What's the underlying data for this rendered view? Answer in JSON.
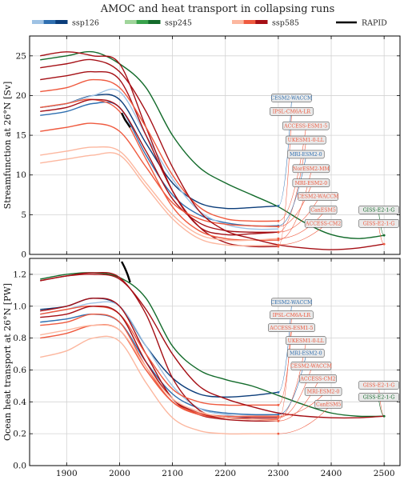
{
  "figure_title": "AMOC and heat transport in collapsing runs",
  "colors": {
    "ssp126": [
      "#9ec2e4",
      "#2f6fb0",
      "#0b3d7a"
    ],
    "ssp245": [
      "#9fd59a",
      "#38a24b",
      "#136b2b"
    ],
    "ssp585": [
      "#fcb79f",
      "#ef5a3f",
      "#a50f15"
    ],
    "rapid": "#000000"
  },
  "legend": [
    {
      "label": "ssp126",
      "scenario": "ssp126"
    },
    {
      "label": "ssp245",
      "scenario": "ssp245"
    },
    {
      "label": "ssp585",
      "scenario": "ssp585"
    },
    {
      "label": "RAPID",
      "scenario": "rapid"
    }
  ],
  "chart_data": [
    {
      "type": "line",
      "panel": "top",
      "title": "AMOC and heat transport in collapsing runs",
      "xlabel": "",
      "ylabel": "Streamfunction at 26°N [Sv]",
      "xlim": [
        1830,
        2530
      ],
      "ylim": [
        0,
        27.5
      ],
      "xticks": [
        1900,
        2000,
        2100,
        2200,
        2300,
        2400,
        2500
      ],
      "yticks": [
        0,
        5,
        10,
        15,
        20,
        25
      ],
      "grid": true,
      "series": [
        {
          "model": "CESM2-WACCM",
          "scenario": "ssp126",
          "shade": 2,
          "x": [
            1850,
            1900,
            1950,
            2000,
            2050,
            2100,
            2150,
            2200,
            2250,
            2300
          ],
          "y": [
            18.5,
            19,
            20,
            19.5,
            14,
            9,
            6.5,
            5.8,
            5.9,
            6.1
          ]
        },
        {
          "model": "MRI-ESM2-0",
          "scenario": "ssp126",
          "shade": 1,
          "x": [
            1850,
            1900,
            1950,
            2000,
            2050,
            2100,
            2150,
            2200,
            2250,
            2300
          ],
          "y": [
            17.5,
            18,
            19,
            18.5,
            12.5,
            7.5,
            5,
            4,
            3.6,
            3.6
          ]
        },
        {
          "model": "UKESM1-0-LL",
          "scenario": "ssp126",
          "shade": 0,
          "x": [
            1850,
            1900,
            1950,
            2000,
            2050,
            2100,
            2150,
            2200,
            2250,
            2300
          ],
          "y": [
            18.5,
            19,
            20,
            20.5,
            15,
            9.5,
            5.5,
            3.8,
            3.2,
            3.2
          ]
        },
        {
          "model": "GISS-E2-1-G",
          "scenario": "ssp245",
          "shade": 2,
          "x": [
            1850,
            1900,
            1950,
            2000,
            2050,
            2100,
            2150,
            2200,
            2250,
            2300,
            2350,
            2400,
            2450,
            2500
          ],
          "y": [
            24.5,
            25,
            25.5,
            24,
            21,
            15,
            11,
            9,
            7.5,
            6,
            4,
            2.5,
            2,
            2.4
          ]
        },
        {
          "model": "UKESM1-0-LL",
          "scenario": "ssp585",
          "shade": 2,
          "x": [
            1850,
            1900,
            1950,
            2000,
            2050,
            2100,
            2150,
            2200,
            2250,
            2300
          ],
          "y": [
            25,
            25.5,
            25,
            24,
            16,
            8,
            3.5,
            2.5,
            2.6,
            2.8
          ]
        },
        {
          "model": "IPSL-CM6A-LR",
          "scenario": "ssp585",
          "shade": 2,
          "x": [
            1850,
            1900,
            1950,
            2000,
            2050,
            2100,
            2150,
            2200,
            2250,
            2300
          ],
          "y": [
            22,
            22.5,
            23,
            22,
            15,
            8,
            3.5,
            1.5,
            1,
            1
          ]
        },
        {
          "model": "ACCESS-ESM1-5",
          "scenario": "ssp585",
          "shade": 1,
          "x": [
            1850,
            1900,
            1950,
            2000,
            2050,
            2100,
            2150,
            2200,
            2250,
            2300
          ],
          "y": [
            20.5,
            21,
            22,
            21,
            16,
            10,
            6,
            4.5,
            4.2,
            4.2
          ]
        },
        {
          "model": "NorESM2-MM",
          "scenario": "ssp585",
          "shade": 1,
          "x": [
            1850,
            1900,
            1950,
            2000,
            2050,
            2100,
            2150,
            2200,
            2250,
            2300
          ],
          "y": [
            18.5,
            19,
            19.5,
            18,
            12,
            6,
            3,
            2,
            1.8,
            1.8
          ]
        },
        {
          "model": "CESM2-WACCM",
          "scenario": "ssp585",
          "shade": 2,
          "x": [
            1850,
            1900,
            1950,
            2000,
            2050,
            2100,
            2150,
            2200,
            2250,
            2300
          ],
          "y": [
            18,
            18.5,
            19.5,
            18.5,
            13,
            7,
            4,
            3,
            2.8,
            2.8
          ]
        },
        {
          "model": "MRI-ESM2-0",
          "scenario": "ssp585",
          "shade": 1,
          "x": [
            1850,
            1900,
            1950,
            2000,
            2050,
            2100,
            2150,
            2200,
            2250,
            2300
          ],
          "y": [
            15.5,
            16,
            16.5,
            15.5,
            11,
            6.5,
            4.5,
            3.8,
            3.6,
            3.5
          ]
        },
        {
          "model": "CanESM5",
          "scenario": "ssp585",
          "shade": 0,
          "x": [
            1850,
            1900,
            1950,
            2000,
            2050,
            2100,
            2150,
            2200,
            2250,
            2300
          ],
          "y": [
            12.5,
            13,
            13.5,
            13,
            9,
            5,
            2.5,
            1.8,
            1.8,
            2
          ]
        },
        {
          "model": "ACCESS-CM2",
          "scenario": "ssp585",
          "shade": 0,
          "x": [
            1850,
            1900,
            1950,
            2000,
            2050,
            2100,
            2150,
            2200,
            2250,
            2300
          ],
          "y": [
            11.5,
            12,
            12.5,
            12.5,
            8.5,
            4.5,
            2,
            1.2,
            1.1,
            1.2
          ]
        },
        {
          "model": "GISS-E2-1-G",
          "scenario": "ssp585",
          "shade": 2,
          "x": [
            1850,
            1900,
            1950,
            2000,
            2050,
            2100,
            2150,
            2200,
            2250,
            2300,
            2350,
            2400,
            2450,
            2500
          ],
          "y": [
            23.5,
            24,
            24.5,
            23,
            18,
            11,
            5.5,
            3,
            2,
            1.2,
            0.8,
            0.6,
            0.8,
            1.3
          ]
        }
      ],
      "rapid": {
        "x": [
          2004,
          2010,
          2015,
          2020
        ],
        "y": [
          17.8,
          17,
          16.5,
          16
        ]
      },
      "labels": [
        {
          "text": "CESM2-WACCM",
          "scenario": "ssp126",
          "x": 2325,
          "y": 19.7
        },
        {
          "text": "IPSL-CM6A-LR",
          "scenario": "ssp585",
          "x": 2325,
          "y": 18.0
        },
        {
          "text": "ACCESS-ESM1-5",
          "scenario": "ssp585",
          "x": 2352,
          "y": 16.2
        },
        {
          "text": "UKESM1-0-LL",
          "scenario": "ssp585",
          "x": 2352,
          "y": 14.4
        },
        {
          "text": "MRI-ESM2-0",
          "scenario": "ssp126",
          "x": 2352,
          "y": 12.6
        },
        {
          "text": "NorESM2-MM",
          "scenario": "ssp585",
          "x": 2362,
          "y": 10.8
        },
        {
          "text": "MRI-ESM2-0",
          "scenario": "ssp585",
          "x": 2362,
          "y": 9.0
        },
        {
          "text": "CESM2-WACCM",
          "scenario": "ssp585",
          "x": 2375,
          "y": 7.3
        },
        {
          "text": "CanESM5",
          "scenario": "ssp585",
          "x": 2385,
          "y": 5.6
        },
        {
          "text": "ACCESS-CM2",
          "scenario": "ssp585",
          "x": 2385,
          "y": 3.9
        },
        {
          "text": "GISS-E2-1-G",
          "scenario": "ssp245",
          "x": 2490,
          "y": 5.6
        },
        {
          "text": "GISS-E2-1-G",
          "scenario": "ssp585",
          "x": 2490,
          "y": 3.9
        }
      ]
    },
    {
      "type": "line",
      "panel": "bottom",
      "xlabel": "",
      "ylabel": "Ocean heat transport at 26°N [PW]",
      "xlim": [
        1830,
        2530
      ],
      "ylim": [
        0,
        1.3
      ],
      "xticks": [
        1900,
        2000,
        2100,
        2200,
        2300,
        2400,
        2500
      ],
      "yticks": [
        0.0,
        0.2,
        0.4,
        0.6,
        0.8,
        1.0,
        1.2
      ],
      "grid": true,
      "series": [
        {
          "model": "CESM2-WACCM",
          "scenario": "ssp126",
          "shade": 2,
          "x": [
            1850,
            1900,
            1950,
            2000,
            2050,
            2100,
            2150,
            2200,
            2250,
            2300
          ],
          "y": [
            0.98,
            1.0,
            1.05,
            1.0,
            0.75,
            0.55,
            0.45,
            0.43,
            0.44,
            0.46
          ]
        },
        {
          "model": "MRI-ESM2-0",
          "scenario": "ssp126",
          "shade": 1,
          "x": [
            1850,
            1900,
            1950,
            2000,
            2050,
            2100,
            2150,
            2200,
            2250,
            2300
          ],
          "y": [
            0.9,
            0.92,
            0.95,
            0.9,
            0.65,
            0.45,
            0.36,
            0.33,
            0.32,
            0.32
          ]
        },
        {
          "model": "UKESM1-0-LL",
          "scenario": "ssp126",
          "shade": 0,
          "x": [
            1850,
            1900,
            1950,
            2000,
            2050,
            2100,
            2150,
            2200,
            2250,
            2300
          ],
          "y": [
            0.95,
            0.98,
            1.02,
            1.0,
            0.75,
            0.5,
            0.36,
            0.32,
            0.3,
            0.3
          ]
        },
        {
          "model": "GISS-E2-1-G",
          "scenario": "ssp245",
          "shade": 2,
          "x": [
            1850,
            1900,
            1950,
            2000,
            2050,
            2100,
            2150,
            2200,
            2250,
            2300,
            2350,
            2400,
            2450,
            2500
          ],
          "y": [
            1.17,
            1.2,
            1.21,
            1.18,
            1.05,
            0.75,
            0.6,
            0.54,
            0.5,
            0.44,
            0.38,
            0.33,
            0.31,
            0.31
          ]
        },
        {
          "model": "UKESM1-0-LL",
          "scenario": "ssp585",
          "shade": 2,
          "x": [
            1850,
            1900,
            1950,
            2000,
            2050,
            2100,
            2150,
            2200,
            2250,
            2300
          ],
          "y": [
            1.16,
            1.19,
            1.21,
            1.18,
            0.95,
            0.55,
            0.35,
            0.3,
            0.3,
            0.3
          ]
        },
        {
          "model": "IPSL-CM6A-LR",
          "scenario": "ssp585",
          "shade": 2,
          "x": [
            1850,
            1900,
            1950,
            2000,
            2050,
            2100,
            2150,
            2200,
            2250,
            2300
          ],
          "y": [
            0.97,
            1.0,
            1.05,
            1.0,
            0.7,
            0.42,
            0.32,
            0.29,
            0.28,
            0.28
          ]
        },
        {
          "model": "ACCESS-ESM1-5",
          "scenario": "ssp585",
          "shade": 1,
          "x": [
            1850,
            1900,
            1950,
            2000,
            2050,
            2100,
            2150,
            2200,
            2250,
            2300
          ],
          "y": [
            0.95,
            0.98,
            1.0,
            0.95,
            0.7,
            0.48,
            0.4,
            0.38,
            0.38,
            0.38
          ]
        },
        {
          "model": "NorESM2-MM",
          "scenario": "ssp585",
          "shade": 1,
          "x": [
            1850,
            1900,
            1950,
            2000,
            2050,
            2100,
            2150,
            2200,
            2250,
            2300
          ],
          "y": [
            0.88,
            0.9,
            0.95,
            0.9,
            0.62,
            0.4,
            0.32,
            0.3,
            0.29,
            0.29
          ]
        },
        {
          "model": "CESM2-WACCM",
          "scenario": "ssp585",
          "shade": 2,
          "x": [
            1850,
            1900,
            1950,
            2000,
            2050,
            2100,
            2150,
            2200,
            2250,
            2300
          ],
          "y": [
            0.93,
            0.95,
            1.0,
            0.95,
            0.65,
            0.42,
            0.33,
            0.3,
            0.3,
            0.3
          ]
        },
        {
          "model": "MRI-ESM2-0",
          "scenario": "ssp585",
          "shade": 1,
          "x": [
            1850,
            1900,
            1950,
            2000,
            2050,
            2100,
            2150,
            2200,
            2250,
            2300
          ],
          "y": [
            0.8,
            0.83,
            0.88,
            0.85,
            0.6,
            0.4,
            0.33,
            0.31,
            0.31,
            0.31
          ]
        },
        {
          "model": "CanESM5",
          "scenario": "ssp585",
          "shade": 0,
          "x": [
            1850,
            1900,
            1950,
            2000,
            2050,
            2100,
            2150,
            2200,
            2250,
            2300
          ],
          "y": [
            0.68,
            0.72,
            0.8,
            0.78,
            0.52,
            0.3,
            0.22,
            0.2,
            0.2,
            0.2
          ]
        },
        {
          "model": "ACCESS-CM2",
          "scenario": "ssp585",
          "shade": 0,
          "x": [
            1850,
            1900,
            1950,
            2000,
            2050,
            2100,
            2150,
            2200,
            2250,
            2300
          ],
          "y": [
            0.82,
            0.85,
            0.88,
            0.85,
            0.62,
            0.42,
            0.34,
            0.3,
            0.29,
            0.28
          ]
        },
        {
          "model": "GISS-E2-1-G",
          "scenario": "ssp585",
          "shade": 2,
          "x": [
            1850,
            1900,
            1950,
            2000,
            2050,
            2100,
            2150,
            2200,
            2250,
            2300,
            2350,
            2400,
            2450,
            2500
          ],
          "y": [
            1.16,
            1.19,
            1.2,
            1.17,
            0.98,
            0.7,
            0.5,
            0.42,
            0.37,
            0.33,
            0.31,
            0.3,
            0.3,
            0.31
          ]
        }
      ],
      "rapid": {
        "x": [
          2004,
          2010,
          2015,
          2020
        ],
        "y": [
          1.28,
          1.24,
          1.2,
          1.15
        ]
      },
      "labels": [
        {
          "text": "CESM2-WACCM",
          "scenario": "ssp126",
          "x": 2325,
          "y": 1.025
        },
        {
          "text": "IPSL-CM6A-LR",
          "scenario": "ssp585",
          "x": 2325,
          "y": 0.945
        },
        {
          "text": "ACCESS-ESM1-5",
          "scenario": "ssp585",
          "x": 2325,
          "y": 0.865
        },
        {
          "text": "UKESM1-0-LL",
          "scenario": "ssp585",
          "x": 2352,
          "y": 0.785
        },
        {
          "text": "MRI-ESM2-0",
          "scenario": "ssp126",
          "x": 2352,
          "y": 0.705
        },
        {
          "text": "CESM2-WACCM",
          "scenario": "ssp585",
          "x": 2362,
          "y": 0.625
        },
        {
          "text": "ACCESS-CM2",
          "scenario": "ssp585",
          "x": 2375,
          "y": 0.545
        },
        {
          "text": "MRI-ESM2-0",
          "scenario": "ssp585",
          "x": 2385,
          "y": 0.465
        },
        {
          "text": "CanESM5",
          "scenario": "ssp585",
          "x": 2395,
          "y": 0.385
        },
        {
          "text": "GISS-E2-1-G",
          "scenario": "ssp585",
          "x": 2490,
          "y": 0.505
        },
        {
          "text": "GISS-E2-1-G",
          "scenario": "ssp245",
          "x": 2490,
          "y": 0.43
        }
      ]
    }
  ]
}
